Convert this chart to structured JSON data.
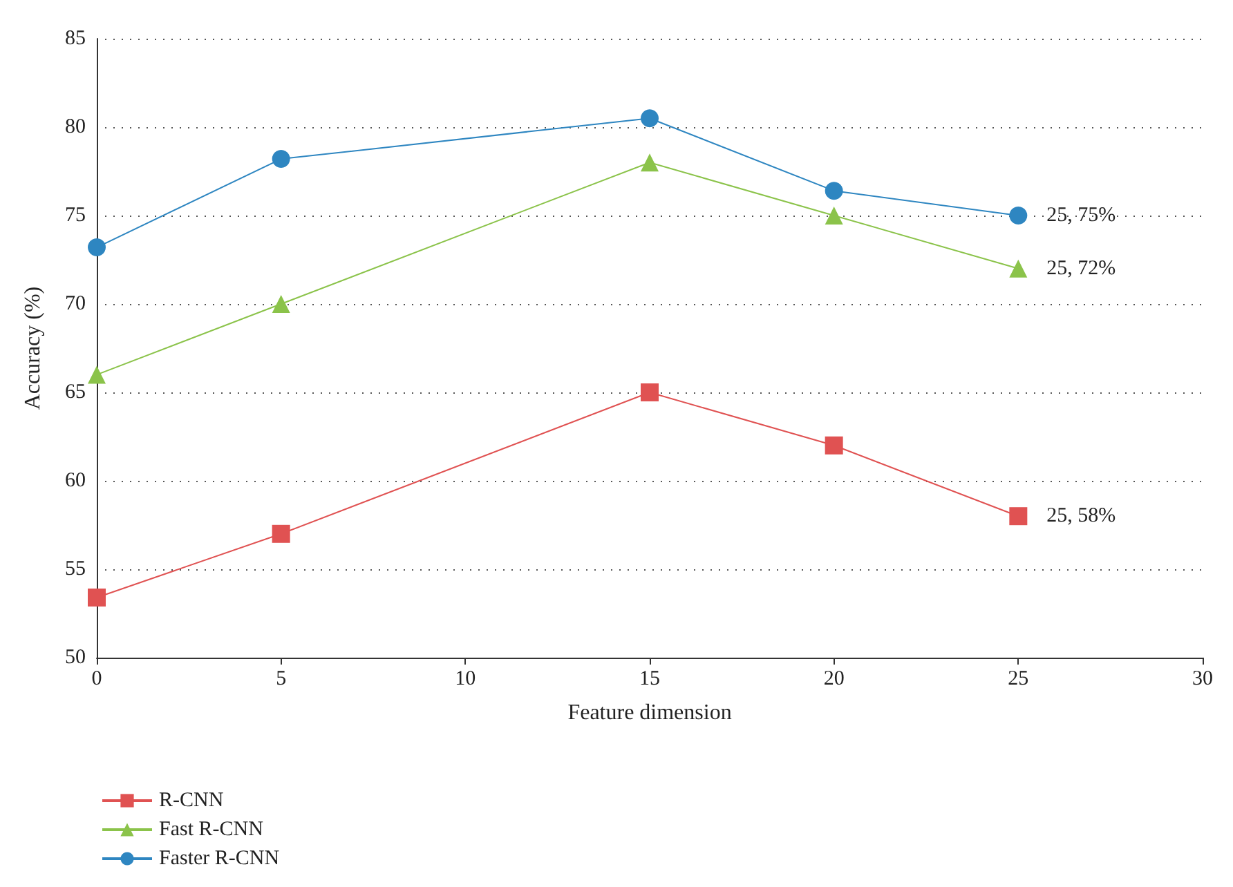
{
  "chart_data": {
    "type": "line",
    "xlabel": "Feature dimension",
    "ylabel": "Accuracy (%)",
    "x": [
      0,
      5,
      15,
      20,
      25
    ],
    "series": [
      {
        "name": "R-CNN",
        "color": "#e05252",
        "marker": "square",
        "values": [
          53.4,
          57,
          65,
          62,
          58
        ],
        "value_labels": [
          null,
          null,
          null,
          null,
          "25, 58%"
        ]
      },
      {
        "name": "Fast R-CNN",
        "color": "#8bc34a",
        "marker": "triangle",
        "values": [
          66,
          70,
          78,
          75,
          72
        ],
        "value_labels": [
          null,
          null,
          null,
          null,
          "25, 72%"
        ]
      },
      {
        "name": "Faster R-CNN",
        "color": "#2e86c1",
        "marker": "circle",
        "values": [
          73.2,
          78.2,
          80.5,
          76.4,
          75
        ],
        "value_labels": [
          null,
          null,
          null,
          null,
          "25, 75%"
        ]
      }
    ],
    "xlim": [
      0,
      30
    ],
    "xticks": [
      0,
      5,
      10,
      15,
      20,
      25,
      30
    ],
    "ylim": [
      50,
      85
    ],
    "yticks": [
      50,
      55,
      60,
      65,
      70,
      75,
      80,
      85
    ],
    "grid": "y",
    "legend": "bottom left",
    "line_style": "solid"
  }
}
